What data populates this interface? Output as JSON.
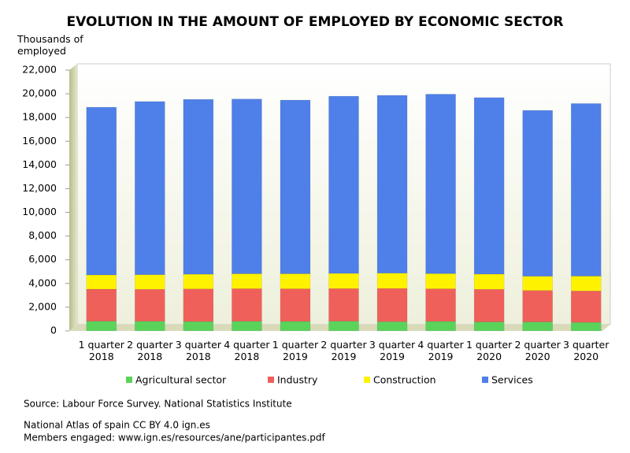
{
  "chart_data": {
    "type": "stacked_bar",
    "title": "EVOLUTION IN THE AMOUNT OF EMPLOYED BY ECONOMIC SECTOR",
    "y_label": "Thousands of employed",
    "categories": [
      "1 quarter 2018",
      "2 quarter 2018",
      "3 quarter 2018",
      "4 quarter 2018",
      "1 quarter 2019",
      "2 quarter 2019",
      "3 quarter 2019",
      "4 quarter 2019",
      "1 quarter 2020",
      "2 quarter 2020",
      "3 quarter 2020"
    ],
    "series": [
      {
        "name": "Agricultural sector",
        "color": "#5bd35b",
        "values": [
          820,
          810,
          790,
          810,
          800,
          820,
          780,
          800,
          760,
          760,
          720
        ]
      },
      {
        "name": "Industry",
        "color": "#f0605a",
        "values": [
          2700,
          2700,
          2750,
          2750,
          2750,
          2750,
          2800,
          2750,
          2750,
          2650,
          2650
        ]
      },
      {
        "name": "Construction",
        "color": "#fff200",
        "values": [
          1200,
          1230,
          1240,
          1260,
          1270,
          1280,
          1290,
          1280,
          1280,
          1200,
          1250
        ]
      },
      {
        "name": "Services",
        "color": "#4f7fe8",
        "values": [
          14150,
          14610,
          14750,
          14740,
          14650,
          14950,
          15000,
          15140,
          14890,
          13990,
          14560
        ]
      }
    ],
    "ylim": [
      0,
      22000
    ],
    "yticks": [
      0,
      {
        "value": 2000,
        "label": "2,000"
      },
      {
        "value": 4000,
        "label": "4,000"
      },
      {
        "value": 6000,
        "label": "6,000"
      },
      {
        "value": 8000,
        "label": "8,000"
      },
      {
        "value": 10000,
        "label": "10,000"
      },
      {
        "value": 12000,
        "label": "12,000"
      },
      {
        "value": 14000,
        "label": "14,000"
      },
      {
        "value": 16000,
        "label": "16,000"
      },
      {
        "value": 18000,
        "label": "18,000"
      },
      {
        "value": 20000,
        "label": "20,000"
      },
      {
        "value": 22000,
        "label": "22,000"
      }
    ],
    "grid": false,
    "notes": [
      "Source: Labour Force Survey. National Statistics Institute",
      "National Atlas of spain CC BY 4.0 ign.es",
      "Members engaged: www.ign.es/resources/ane/participantes.pdf"
    ]
  }
}
